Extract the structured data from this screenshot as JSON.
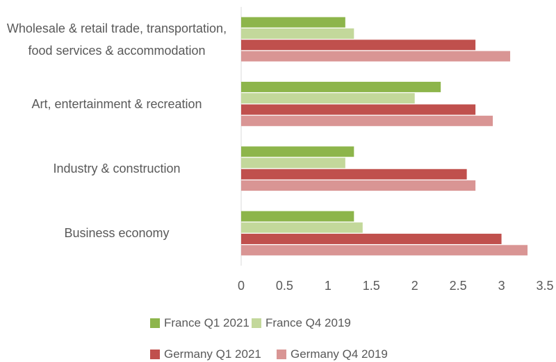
{
  "chart_data": {
    "type": "bar",
    "orientation": "horizontal",
    "categories": [
      "Wholesale & retail trade, transportation, food services & accommodation",
      "Art, entertainment & recreation",
      "Industry & construction",
      "Business economy"
    ],
    "series": [
      {
        "name": "France Q1 2021",
        "color": "#8db54b",
        "values": [
          1.2,
          2.3,
          1.3,
          1.3
        ]
      },
      {
        "name": "France Q4 2019",
        "color": "#c3d89b",
        "values": [
          1.3,
          2.0,
          1.2,
          1.4
        ]
      },
      {
        "name": "Germany Q1 2021",
        "color": "#c0504d",
        "values": [
          2.7,
          2.7,
          2.6,
          3.0
        ]
      },
      {
        "name": "Germany Q4 2019",
        "color": "#d99594",
        "values": [
          3.1,
          2.9,
          2.7,
          3.3
        ]
      }
    ],
    "xlim": [
      0,
      3.5
    ],
    "xticks": [
      0,
      0.5,
      1,
      1.5,
      2,
      2.5,
      3,
      3.5
    ],
    "grid": false,
    "legend": "bottom"
  }
}
